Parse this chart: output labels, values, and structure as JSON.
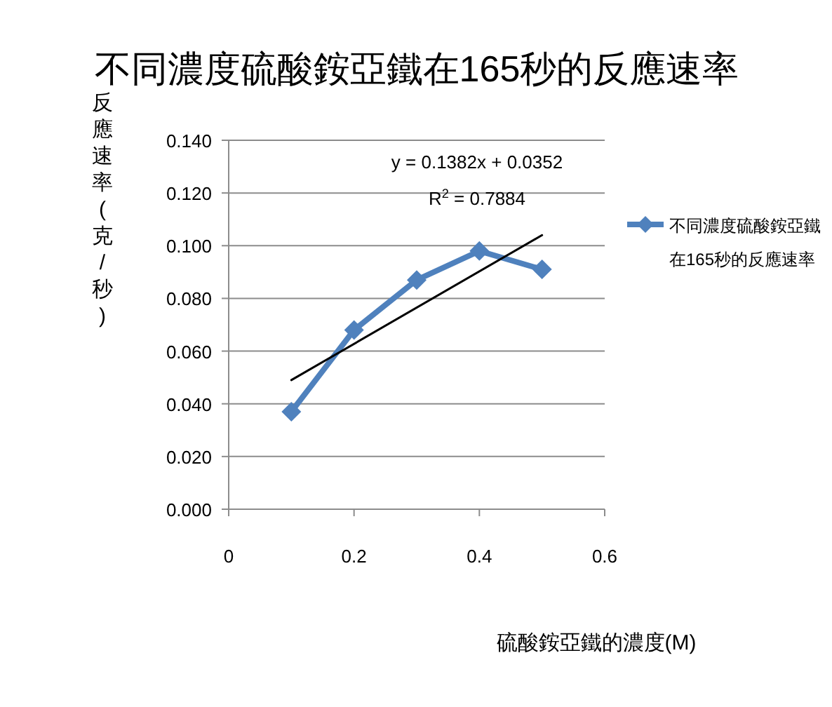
{
  "chart_data": {
    "type": "line",
    "title": "不同濃度硫酸銨亞鐵在165秒的反應速率",
    "xlabel": "硫酸銨亞鐵的濃度(M)",
    "ylabel": "反應速率(克/秒)",
    "xlim": [
      0,
      0.6
    ],
    "xticks": [
      0,
      0.2,
      0.4,
      0.6
    ],
    "ylim": [
      0,
      0.14
    ],
    "yticks": [
      {
        "value": 0,
        "label": "0.000"
      },
      {
        "value": 0.02,
        "label": "0.020"
      },
      {
        "value": 0.04,
        "label": "0.040"
      },
      {
        "value": 0.06,
        "label": "0.060"
      },
      {
        "value": 0.08,
        "label": "0.080"
      },
      {
        "value": 0.1,
        "label": "0.100"
      },
      {
        "value": 0.12,
        "label": "0.120"
      },
      {
        "value": 0.14,
        "label": "0.140"
      }
    ],
    "grid": "y",
    "legend": "right",
    "marker": "diamond",
    "series": [
      {
        "name": "不同濃度硫酸銨亞鐵在165秒的反應速率",
        "color": "#4f81bd",
        "x": [
          0.1,
          0.2,
          0.3,
          0.4,
          0.5
        ],
        "values": [
          0.037,
          0.068,
          0.087,
          0.098,
          0.091
        ]
      },
      {
        "type": "line",
        "color": "#000000",
        "marker": "none",
        "x": [
          0.1,
          0.5
        ],
        "values": [
          0.049,
          0.104
        ]
      }
    ],
    "annotations": [
      "y = 0.1382x + 0.0352",
      "R$^{2}$ = 0.7884"
    ]
  }
}
